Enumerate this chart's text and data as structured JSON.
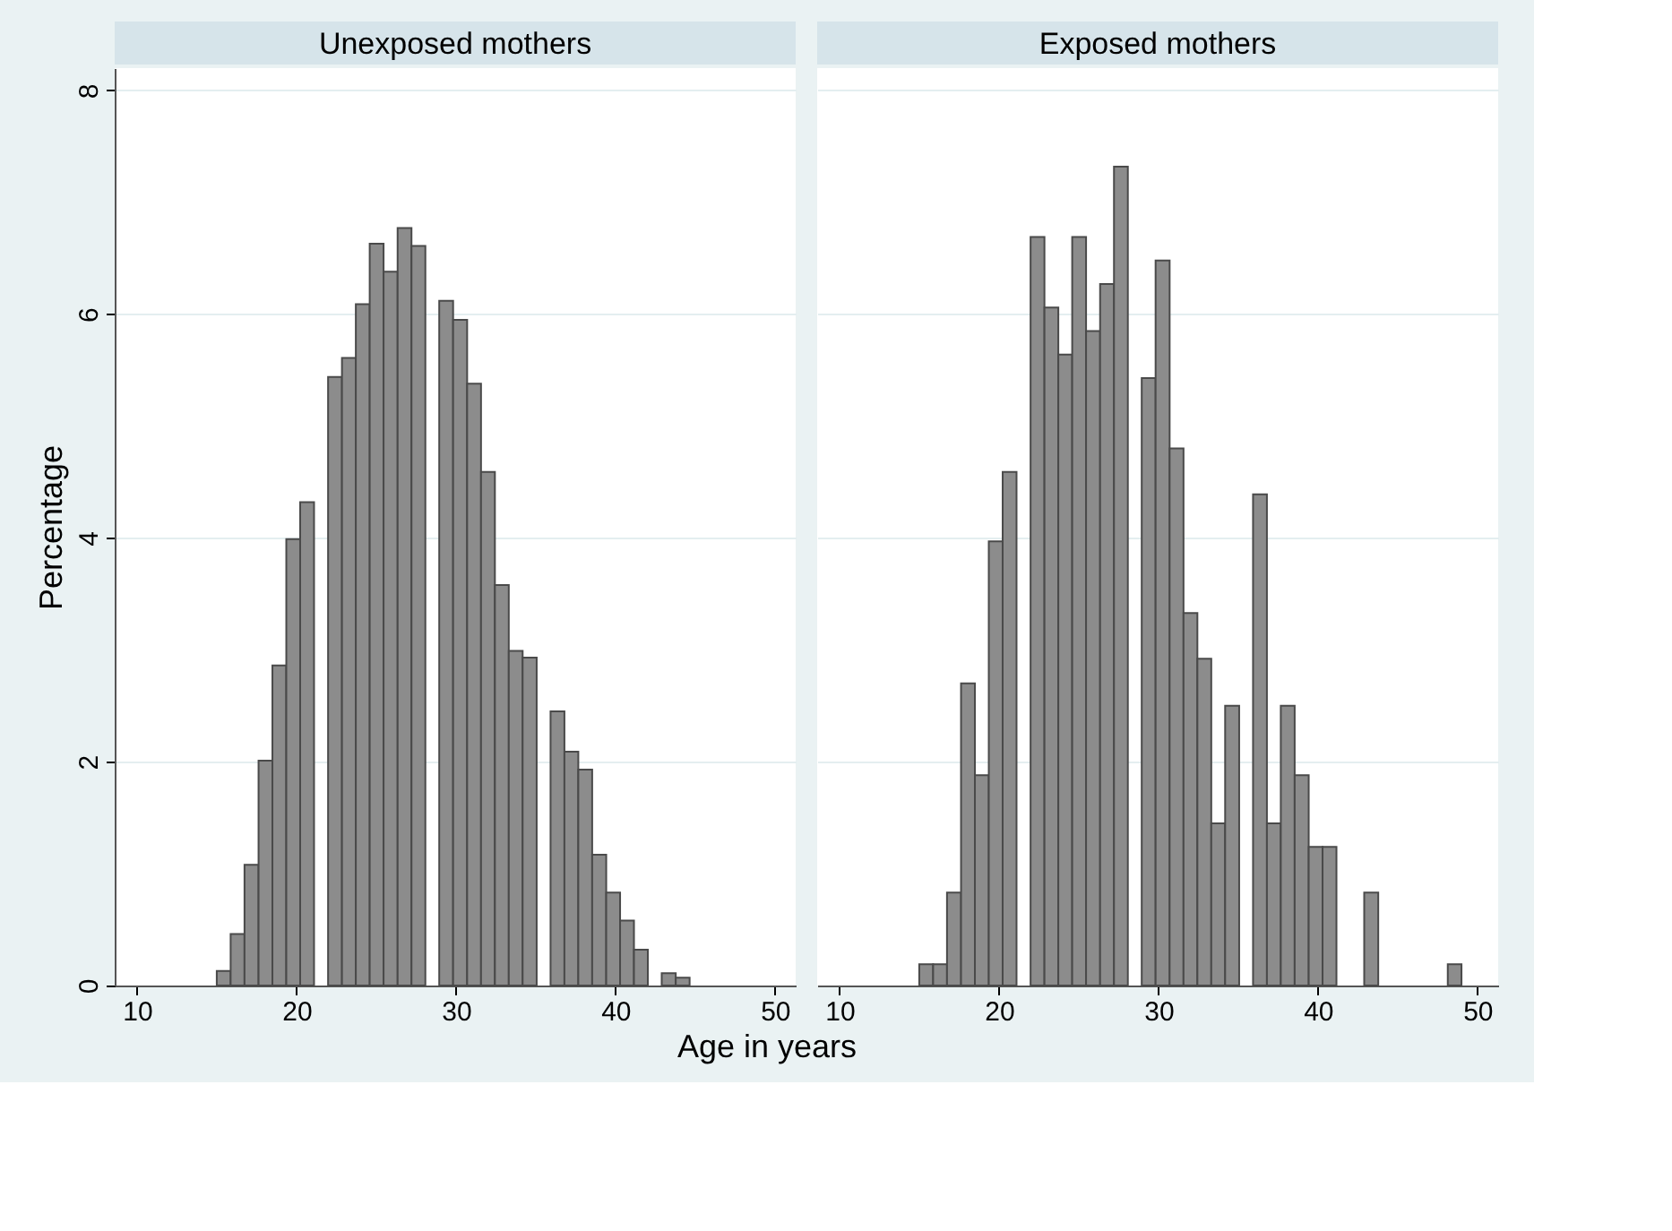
{
  "chart_data": [
    {
      "type": "histogram",
      "title": "Unexposed mothers",
      "xlabel": "Age in years",
      "ylabel": "Percentage",
      "color": "#8c8c8c",
      "grid": "y",
      "bins": [
        15,
        15.87,
        16.74,
        17.62,
        18.49,
        19.36,
        20.23,
        21.1,
        21.98,
        22.85,
        23.72,
        24.59,
        25.46,
        26.34,
        27.21,
        28.08,
        28.95,
        29.82,
        30.7,
        31.57,
        32.44,
        33.31,
        34.18,
        35.06,
        35.93,
        36.8,
        37.67,
        38.54,
        39.42,
        40.29,
        41.16,
        42.03,
        42.9,
        43.78,
        44.65
      ],
      "values": [
        0.13,
        0.46,
        1.08,
        2.01,
        2.86,
        3.99,
        4.32,
        0,
        5.44,
        5.61,
        6.09,
        6.63,
        6.38,
        6.77,
        6.61,
        0,
        6.12,
        5.95,
        5.38,
        4.59,
        3.58,
        2.99,
        2.93,
        0,
        2.45,
        2.09,
        1.93,
        1.17,
        0.83,
        0.58,
        0.32,
        0,
        0.11,
        0.07
      ],
      "xlim": [
        8.6,
        51.3
      ],
      "xticks": [
        10,
        20,
        30,
        40,
        50
      ],
      "ylim": [
        0,
        8.2
      ],
      "yticks": [
        0,
        2,
        4,
        6,
        8
      ]
    },
    {
      "type": "histogram",
      "title": "Exposed mothers",
      "color": "#8c8c8c",
      "grid": "y",
      "tick_labels": "x",
      "bins": [
        15,
        15.87,
        16.74,
        17.62,
        18.49,
        19.36,
        20.23,
        21.1,
        21.98,
        22.85,
        23.72,
        24.59,
        25.46,
        26.34,
        27.21,
        28.08,
        28.95,
        29.82,
        30.7,
        31.57,
        32.44,
        33.31,
        34.18,
        35.06,
        35.93,
        36.8,
        37.67,
        38.54,
        39.42,
        40.29,
        41.16,
        42.03,
        42.9,
        43.78,
        44.65,
        45.52,
        46.39,
        47.26,
        48.14,
        49.0
      ],
      "values": [
        0.19,
        0.19,
        0.83,
        2.7,
        1.88,
        3.97,
        4.59,
        0,
        6.69,
        6.06,
        5.64,
        6.69,
        5.85,
        6.27,
        7.32,
        0,
        5.43,
        6.48,
        4.8,
        3.33,
        2.92,
        1.45,
        2.5,
        0,
        4.39,
        1.45,
        2.5,
        1.88,
        1.24,
        1.24,
        0,
        0,
        0.83,
        0,
        0,
        0,
        0,
        0,
        0.19
      ],
      "xlim": [
        8.6,
        51.3
      ],
      "xticks": [
        10,
        20,
        30,
        40,
        50
      ],
      "ylim": [
        0,
        8.2
      ],
      "yticks": [
        0,
        2,
        4,
        6,
        8
      ]
    }
  ]
}
